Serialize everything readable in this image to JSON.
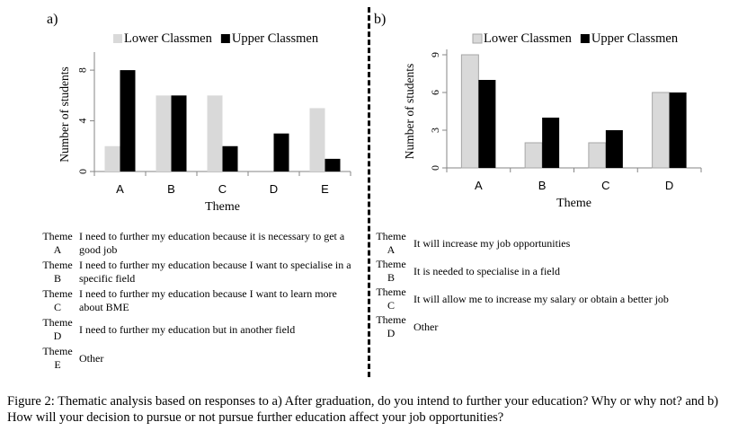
{
  "caption": "Figure 2: Thematic analysis based on responses to a) After graduation, do you intend to further your education? Why or why not? and b) How will your decision to pursue or not pursue further education affect your job opportunities?",
  "colors": {
    "lower": "#d9d9d9",
    "upper": "#000000",
    "axis": "#868686",
    "lower_stroke": "#a6a6a6"
  },
  "chart_data": [
    {
      "panel": "a)",
      "type": "bar",
      "xlabel": "Theme",
      "ylabel": "Number of students",
      "categories": [
        "A",
        "B",
        "C",
        "D",
        "E"
      ],
      "series": [
        {
          "name": "Lower Classmen",
          "values": [
            2,
            6,
            6,
            0,
            5
          ]
        },
        {
          "name": "Upper Classmen",
          "values": [
            8,
            6,
            2,
            3,
            1
          ]
        }
      ],
      "ylim": [
        0,
        9
      ],
      "yticks": [
        "0",
        "4",
        "8"
      ],
      "legend": "top",
      "grid": false
    },
    {
      "panel": "b)",
      "type": "bar",
      "xlabel": "Theme",
      "ylabel": "Number of students",
      "categories": [
        "A",
        "B",
        "C",
        "D"
      ],
      "series": [
        {
          "name": "Lower Classmen",
          "values": [
            9,
            2,
            2,
            6
          ]
        },
        {
          "name": "Upper Classmen",
          "values": [
            7,
            4,
            3,
            6
          ]
        }
      ],
      "ylim": [
        0,
        9
      ],
      "yticks": [
        "0",
        "3",
        "6",
        "9"
      ],
      "legend": "top",
      "grid": false
    }
  ],
  "themes_a": [
    {
      "key": [
        "Theme",
        "A"
      ],
      "text": "I need to further my education because it is necessary to get a good job"
    },
    {
      "key": [
        "Theme",
        "B"
      ],
      "text": "I need to further my education because I want to specialise in a specific field"
    },
    {
      "key": [
        "Theme",
        "C"
      ],
      "text": "I need to further my education because I want to learn more about BME"
    },
    {
      "key": [
        "Theme",
        "D"
      ],
      "text": "I need to further my education but in another field"
    },
    {
      "key": [
        "Theme",
        "E"
      ],
      "text": "Other"
    }
  ],
  "themes_b": [
    {
      "key": [
        "Theme",
        "A"
      ],
      "text": "It will increase my job opportunities"
    },
    {
      "key": [
        "Theme",
        "B"
      ],
      "text": "It is needed to specialise in a field"
    },
    {
      "key": [
        "Theme",
        "C"
      ],
      "text": "It will allow me to increase my salary or obtain a better job"
    },
    {
      "key": [
        "Theme",
        "D"
      ],
      "text": "Other"
    }
  ]
}
